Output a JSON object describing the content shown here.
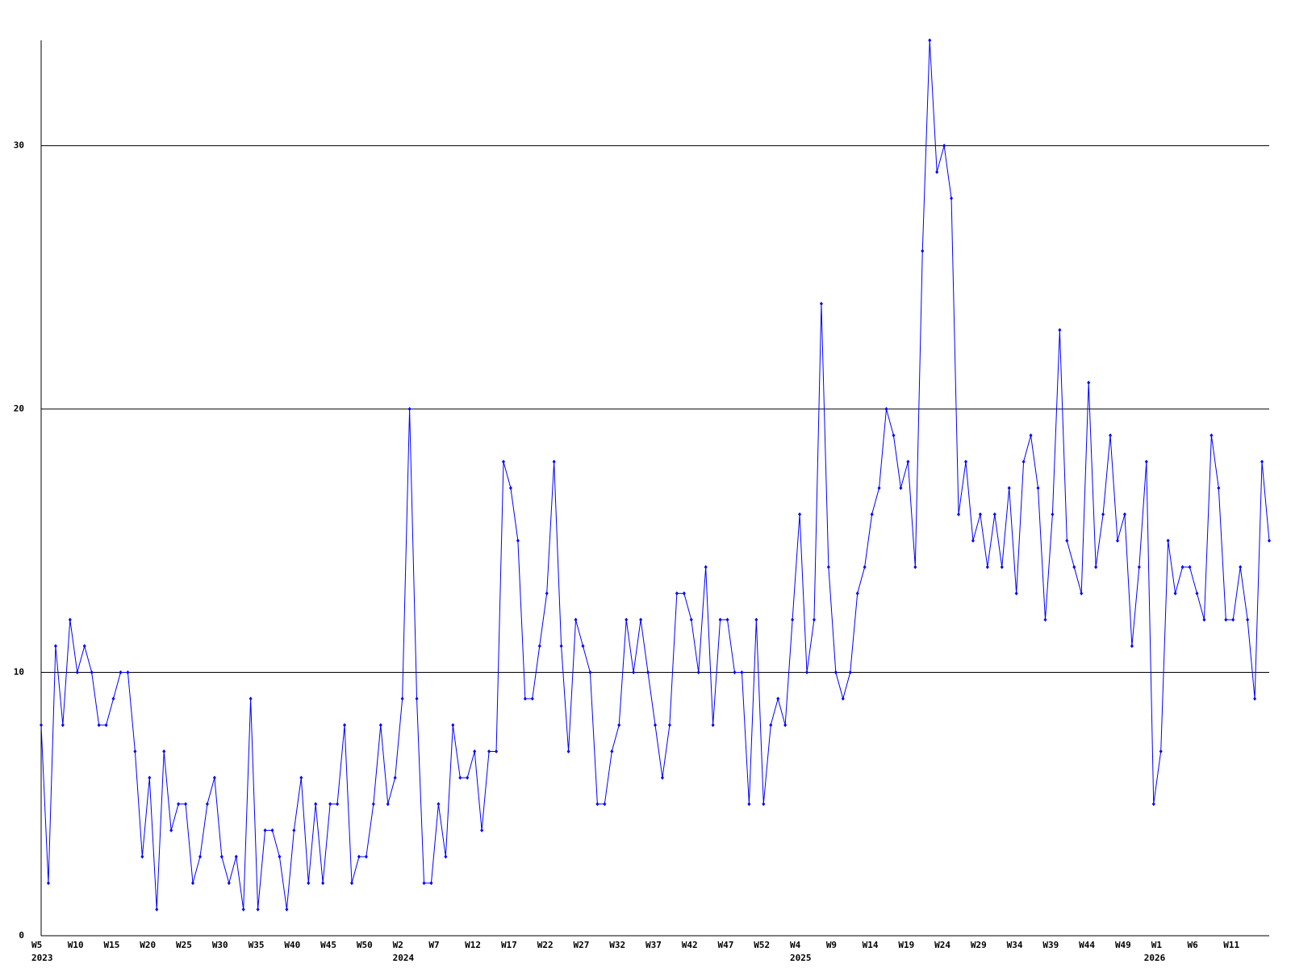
{
  "chart_data": {
    "type": "line",
    "categories": [
      "W5",
      null,
      null,
      null,
      null,
      "W10",
      null,
      null,
      null,
      null,
      "W15",
      null,
      null,
      null,
      null,
      "W20",
      null,
      null,
      null,
      null,
      "W25",
      null,
      null,
      null,
      null,
      "W30",
      null,
      null,
      null,
      null,
      "W35",
      null,
      null,
      null,
      null,
      "W40",
      null,
      null,
      null,
      null,
      "W45",
      null,
      null,
      null,
      null,
      "W50",
      null,
      null,
      null,
      null,
      "W2",
      null,
      null,
      null,
      null,
      "W7",
      null,
      null,
      null,
      null,
      "W12",
      null,
      null,
      null,
      null,
      "W17",
      null,
      null,
      null,
      null,
      "W22",
      null,
      null,
      null,
      null,
      "W27",
      null,
      null,
      null,
      null,
      "W32",
      null,
      null,
      null,
      null,
      "W37",
      null,
      null,
      null,
      null,
      "W42",
      null,
      null,
      null,
      null,
      "W47",
      null,
      null,
      null,
      null,
      "W52",
      null,
      null,
      null,
      null,
      "W4",
      null,
      null,
      null,
      null,
      "W9",
      null,
      null,
      null,
      null,
      "W14",
      null,
      null,
      null,
      null,
      "W19",
      null,
      null,
      null,
      null,
      "W24",
      null,
      null,
      null,
      null,
      "W29",
      null,
      null,
      null,
      null,
      "W34",
      null,
      null,
      null,
      null,
      "W39",
      null,
      null,
      null,
      null,
      "W44",
      null,
      null,
      null,
      null,
      "W49",
      null,
      null,
      null,
      null,
      "W1",
      null,
      null,
      null,
      null,
      "W6",
      null,
      null,
      null,
      null,
      "W11",
      null,
      null,
      null,
      null,
      null
    ],
    "category_years": [
      "2023",
      null,
      null,
      null,
      null,
      null,
      null,
      null,
      null,
      null,
      null,
      null,
      null,
      null,
      null,
      null,
      null,
      null,
      null,
      null,
      null,
      null,
      null,
      null,
      null,
      null,
      null,
      null,
      null,
      null,
      null,
      null,
      null,
      null,
      null,
      null,
      null,
      null,
      null,
      null,
      null,
      null,
      null,
      null,
      null,
      null,
      null,
      null,
      null,
      null,
      "2024",
      null,
      null,
      null,
      null,
      null,
      null,
      null,
      null,
      null,
      null,
      null,
      null,
      null,
      null,
      null,
      null,
      null,
      null,
      null,
      null,
      null,
      null,
      null,
      null,
      null,
      null,
      null,
      null,
      null,
      null,
      null,
      null,
      null,
      null,
      null,
      null,
      null,
      null,
      null,
      null,
      null,
      null,
      null,
      null,
      null,
      null,
      null,
      null,
      null,
      null,
      null,
      null,
      null,
      null,
      "2025",
      null,
      null,
      null,
      null,
      null,
      null,
      null,
      null,
      null,
      null,
      null,
      null,
      null,
      null,
      null,
      null,
      null,
      null,
      null,
      null,
      null,
      null,
      null,
      null,
      null,
      null,
      null,
      null,
      null,
      null,
      null,
      null,
      null,
      null,
      null,
      null,
      null,
      null,
      null,
      null,
      null,
      null,
      null,
      null,
      null,
      null,
      null,
      null,
      "2026",
      null,
      null,
      null,
      null,
      null,
      null,
      null,
      null,
      null,
      null,
      null,
      null,
      null,
      null,
      null
    ],
    "values": [
      8,
      2,
      11,
      8,
      12,
      10,
      11,
      10,
      8,
      8,
      9,
      10,
      10,
      7,
      3,
      6,
      1,
      7,
      4,
      5,
      5,
      2,
      3,
      5,
      6,
      3,
      2,
      3,
      1,
      9,
      1,
      4,
      4,
      3,
      1,
      4,
      6,
      2,
      5,
      2,
      5,
      5,
      8,
      2,
      3,
      3,
      5,
      8,
      5,
      6,
      9,
      20,
      9,
      2,
      2,
      5,
      3,
      8,
      6,
      6,
      7,
      4,
      7,
      7,
      18,
      17,
      15,
      9,
      9,
      11,
      13,
      18,
      11,
      7,
      12,
      11,
      10,
      5,
      5,
      7,
      8,
      12,
      10,
      12,
      10,
      8,
      6,
      8,
      13,
      13,
      12,
      10,
      14,
      8,
      12,
      12,
      10,
      10,
      5,
      12,
      5,
      8,
      9,
      8,
      12,
      16,
      10,
      12,
      24,
      14,
      10,
      9,
      10,
      13,
      14,
      16,
      17,
      20,
      19,
      17,
      18,
      14,
      26,
      34,
      29,
      30,
      28,
      16,
      18,
      15,
      16,
      14,
      16,
      14,
      17,
      13,
      18,
      19,
      17,
      12,
      16,
      23,
      15,
      14,
      13,
      21,
      14,
      16,
      19,
      15,
      16,
      11,
      14,
      18,
      5,
      7,
      15,
      13,
      14,
      14,
      13,
      12,
      19,
      17,
      12,
      12,
      14,
      12,
      9,
      18,
      15
    ],
    "color": "#0000ff",
    "ylim": [
      0,
      34
    ],
    "yticks": [
      0,
      10,
      20,
      30
    ],
    "grid": true
  }
}
